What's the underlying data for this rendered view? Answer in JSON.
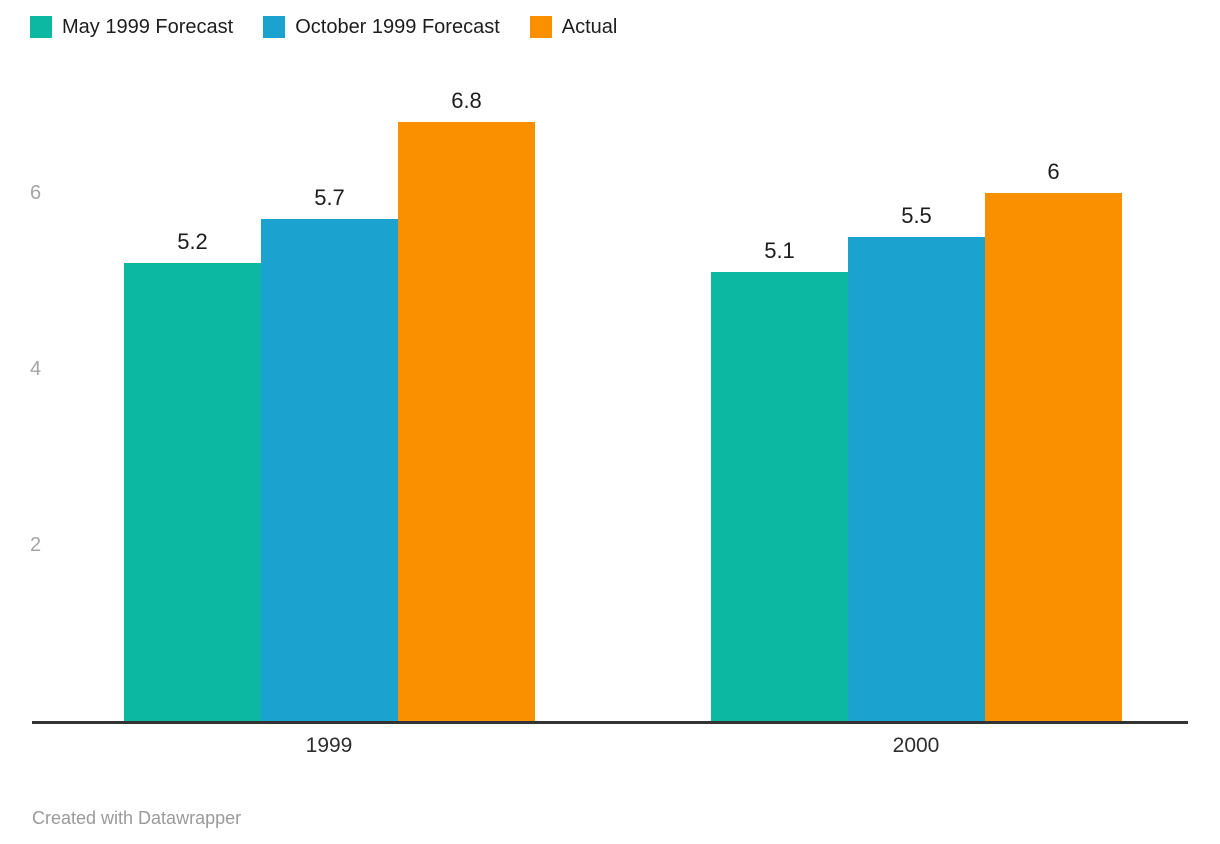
{
  "chart_data": {
    "type": "bar",
    "categories": [
      "1999",
      "2000"
    ],
    "series": [
      {
        "name": "May 1999 Forecast",
        "color": "#0cb8a1",
        "values": [
          5.2,
          5.1
        ]
      },
      {
        "name": "October 1999 Forecast",
        "color": "#1ba2ce",
        "values": [
          5.7,
          5.5
        ]
      },
      {
        "name": "Actual",
        "color": "#fa9000",
        "values": [
          6.8,
          6
        ]
      }
    ],
    "value_labels": [
      [
        "5.2",
        "5.7",
        "6.8"
      ],
      [
        "5.1",
        "5.5",
        "6"
      ]
    ],
    "yticks": [
      2,
      4,
      6
    ],
    "ylim": [
      0,
      7.2
    ],
    "xlabel": "",
    "ylabel": "",
    "title": "",
    "grid": false,
    "legend_position": "top-left",
    "axis_color": "#333333",
    "tick_label_color": "#a5a5a5",
    "value_label_color": "#1d1d1d"
  },
  "footer": {
    "attribution": "Created with Datawrapper"
  }
}
